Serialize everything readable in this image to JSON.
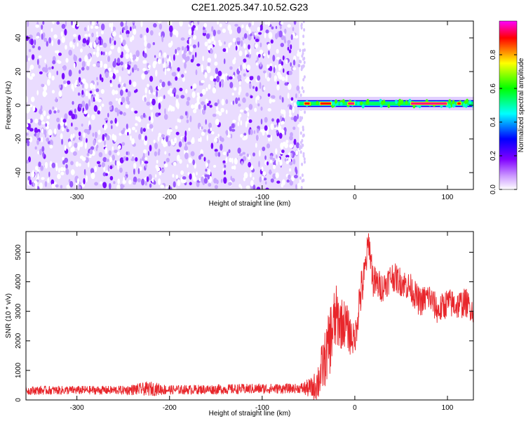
{
  "chart_data": [
    {
      "type": "heatmap",
      "title": "C2E1.2025.347.10.52.G23",
      "xlabel": "Height of straight line (km)",
      "ylabel": "Frequency (Hz)",
      "xlim": [
        -355,
        128
      ],
      "ylim": [
        -50,
        50
      ],
      "x_ticks": [
        -300,
        -200,
        -100,
        0,
        100
      ],
      "y_ticks": [
        -40,
        -20,
        0,
        20,
        40
      ],
      "colorbar": {
        "label": "Normalized spectral amplitude",
        "range": [
          0,
          1
        ],
        "ticks": [
          0.0,
          0.2,
          0.4,
          0.6,
          0.8
        ],
        "tick_labels": [
          "0.0",
          "0.2",
          "0.4",
          "0.6",
          "0.8"
        ],
        "colormap": [
          "#ffffff",
          "#8000ff",
          "#0000ff",
          "#00ffff",
          "#00ff00",
          "#ffff00",
          "#ff0000",
          "#ff00ff"
        ]
      },
      "noise_region": {
        "x_range": [
          -355,
          -60
        ],
        "freq_range": [
          -50,
          50
        ],
        "typical_amplitude": 0.1
      },
      "signal_band": {
        "x_range": [
          -62,
          128
        ],
        "center_freq_hz": 1,
        "half_width_hz": 2,
        "peak_segments": [
          {
            "x": [
              -55,
              -48
            ],
            "amplitude": 0.9
          },
          {
            "x": [
              -38,
              -25
            ],
            "amplitude": 0.9
          },
          {
            "x": [
              -8,
              0
            ],
            "amplitude": 0.95
          },
          {
            "x": [
              60,
              100
            ],
            "amplitude": 0.95
          },
          {
            "x": [
              110,
              115
            ],
            "amplitude": 0.9
          }
        ]
      }
    },
    {
      "type": "line",
      "xlabel": "Height of straight line (km)",
      "ylabel": "SNR (10 * v/v)",
      "xlim": [
        -355,
        128
      ],
      "ylim": [
        0,
        5700
      ],
      "x_ticks": [
        -300,
        -200,
        -100,
        0,
        100
      ],
      "y_ticks": [
        0,
        1000,
        2000,
        3000,
        4000,
        5000
      ],
      "color": "#e8262b",
      "series": [
        {
          "x": [
            -355,
            -300,
            -250,
            -220,
            -200,
            -150,
            -100,
            -60,
            -45,
            -40,
            -35,
            -30,
            -25,
            -20,
            -15,
            -10,
            -5,
            0,
            5,
            10,
            15,
            20,
            30,
            40,
            50,
            60,
            70,
            80,
            90,
            100,
            110,
            120,
            128
          ],
          "y": [
            320,
            330,
            330,
            380,
            340,
            360,
            380,
            390,
            400,
            600,
            1100,
            1600,
            2300,
            2800,
            2600,
            2600,
            2200,
            2000,
            3400,
            4100,
            5400,
            4000,
            3800,
            4200,
            4000,
            3800,
            3300,
            3500,
            3000,
            3300,
            3200,
            3300,
            3000
          ],
          "noise_amplitude": [
            150,
            150,
            150,
            250,
            160,
            170,
            180,
            160,
            400,
            700,
            900,
            1000,
            1300,
            1100,
            900,
            800,
            700,
            500,
            800,
            700,
            500,
            600,
            500,
            500,
            500,
            500,
            500,
            500,
            500,
            500,
            500,
            500,
            400
          ]
        }
      ]
    }
  ]
}
